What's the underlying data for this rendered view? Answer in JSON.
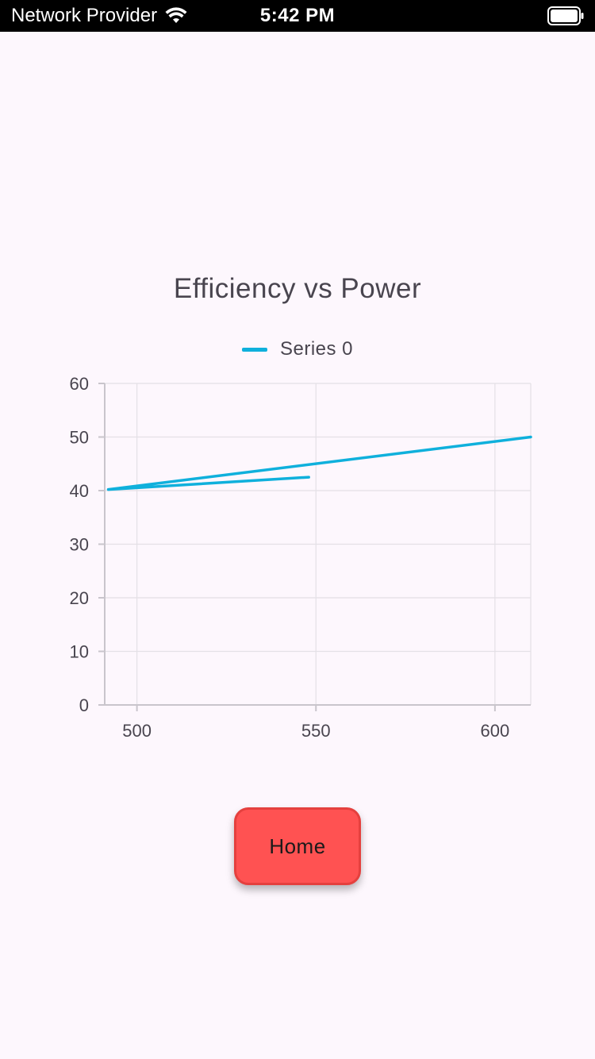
{
  "status_bar": {
    "carrier": "Network Provider",
    "time": "5:42 PM",
    "wifi_icon": "wifi-icon",
    "battery_icon": "battery-icon"
  },
  "chart_data": {
    "type": "line",
    "title": "Efficiency vs Power",
    "xlabel": "",
    "ylabel": "",
    "series": [
      {
        "name": "Series 0",
        "color": "#0fb0dc",
        "x": [
          548,
          492,
          610
        ],
        "y": [
          42.5,
          40.2,
          50
        ]
      }
    ],
    "xlim": [
      491,
      610
    ],
    "ylim": [
      0,
      60
    ],
    "x_ticks": [
      500,
      550,
      600
    ],
    "y_ticks": [
      0,
      10,
      20,
      30,
      40,
      50,
      60
    ],
    "grid": true,
    "legend_position": "top-center"
  },
  "button": {
    "home_label": "Home"
  },
  "colors": {
    "background": "#fdf7fd",
    "series": "#0fb0dc",
    "button": "#ff5252",
    "text": "#49454f"
  }
}
